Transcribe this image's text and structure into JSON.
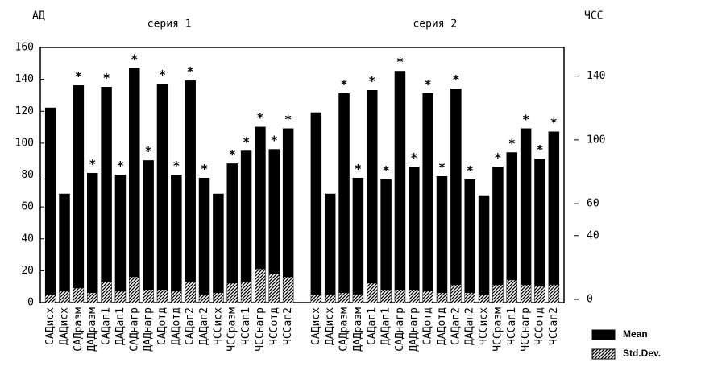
{
  "chart_data": {
    "type": "bar",
    "ylabel": "АД",
    "y2label": "ЧСС",
    "groups": [
      "серия 1",
      "серия 2"
    ],
    "categories": [
      "САДисх",
      "ДАДисх",
      "САДразм",
      "ДАДразм",
      "САДап1",
      "ДАДап1",
      "САДнагр",
      "ДАДнагр",
      "САДотд",
      "ДАДотд",
      "САДап2",
      "ДАДап2",
      "ЧССисх",
      "ЧССразм",
      "ЧССап1",
      "ЧССнагр",
      "ЧССотд",
      "ЧССап2",
      null,
      "САДисх",
      "ДАДисх",
      "САДразм",
      "ДАДразм",
      "САДап1",
      "ДАДап1",
      "САДнагр",
      "ДАДнагр",
      "САДотд",
      "ДАДотд",
      "САДап2",
      "ДАДап2",
      "ЧССисх",
      "ЧССразм",
      "ЧССап1",
      "ЧССнагр",
      "ЧССотд",
      "ЧССап2"
    ],
    "series": [
      {
        "name": "Mean",
        "color": "#000000",
        "pattern": "solid",
        "values": [
          122,
          68,
          136,
          81,
          135,
          80,
          147,
          89,
          137,
          80,
          139,
          78,
          68,
          87,
          95,
          110,
          96,
          109,
          null,
          119,
          68,
          131,
          78,
          133,
          77,
          145,
          85,
          131,
          79,
          134,
          77,
          67,
          85,
          94,
          109,
          90,
          107
        ]
      },
      {
        "name": "Std.Dev.",
        "color": "#000000",
        "pattern": "hatch",
        "values": [
          5,
          7,
          9,
          6,
          13,
          7,
          16,
          8,
          8,
          7,
          13,
          5,
          6,
          12,
          13,
          21,
          18,
          16,
          null,
          5,
          5,
          6,
          5,
          12,
          8,
          8,
          8,
          7,
          6,
          11,
          6,
          5,
          11,
          14,
          11,
          10,
          11
        ]
      }
    ],
    "markers": [
      null,
      null,
      "*",
      "*",
      "*",
      "*",
      "*",
      "*",
      "*",
      "*",
      "*",
      "*",
      null,
      "*",
      "*",
      "*",
      "*",
      "*",
      null,
      null,
      null,
      "*",
      "*",
      "*",
      "*",
      "*",
      "*",
      "*",
      "*",
      "*",
      "*",
      null,
      "*",
      "*",
      "*",
      "*",
      "*"
    ],
    "ylim": [
      0,
      160
    ],
    "yticks": [
      0,
      20,
      40,
      60,
      80,
      100,
      120,
      140,
      160
    ],
    "y2lim": [
      0,
      160
    ],
    "y2ticks": [
      0,
      40,
      60,
      100,
      140
    ],
    "legend": "bottom-right"
  }
}
